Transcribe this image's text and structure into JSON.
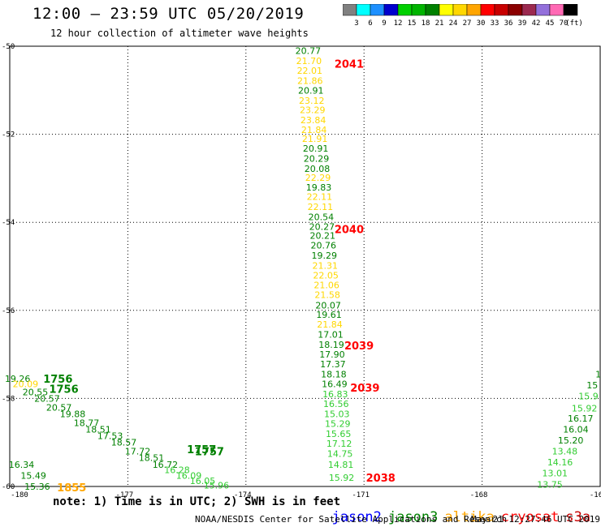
{
  "header": {
    "title": "12:00 – 23:59 UTC 05/20/2019",
    "subtitle": "12 hour collection of altimeter wave heights"
  },
  "colorbar": {
    "colors": [
      "#808080",
      "#00ffff",
      "#1e90ff",
      "#0000cd",
      "#00d000",
      "#00b400",
      "#008000",
      "#ffff00",
      "#ffd700",
      "#ffa500",
      "#ff0000",
      "#c80000",
      "#8b0000",
      "#9c2a50",
      "#9370db",
      "#ff69b4",
      "#000000"
    ],
    "labels": [
      "3",
      "6",
      "9",
      "12",
      "15",
      "18",
      "21",
      "24",
      "27",
      "30",
      "33",
      "36",
      "39",
      "42",
      "45",
      "70"
    ],
    "unit": "(ft)"
  },
  "note": "note: 1) Time is in UTC; 2) SWH is in feet",
  "satellites": [
    {
      "name": "jason2",
      "color": "#0000ff"
    },
    {
      "name": "jason3",
      "color": "#008000"
    },
    {
      "name": "altika",
      "color": "#ffa500"
    },
    {
      "name": "cryosat",
      "color": "#ff0000"
    },
    {
      "name": "s3a",
      "color": "#c80000"
    }
  ],
  "footer": {
    "center": "NOAA/NESDIS Center for Satellite Applications and Research",
    "right": "May 21 12:27:46 UTC 2019"
  },
  "chart_data": {
    "type": "scatter",
    "x_ticks": [
      "-180",
      "-177",
      "-174",
      "-171",
      "-168",
      "-16"
    ],
    "y_ticks": [
      "-50",
      "-52",
      "-54",
      "-56",
      "-58",
      "-60"
    ],
    "xlim": [
      -180,
      -165
    ],
    "ylim": [
      -60,
      -50
    ],
    "grid": true,
    "color_key": {
      "y": "#ffd700",
      "g": "#008000",
      "lg": "#32cd32",
      "o": "#ffa500",
      "r": "#ff0000"
    },
    "point_labels": [
      {
        "x": -172.42,
        "y": -50.1,
        "t": "20.77",
        "c": "g"
      },
      {
        "x": -172.4,
        "y": -50.33,
        "t": "21.70",
        "c": "y"
      },
      {
        "x": -172.38,
        "y": -50.55,
        "t": "22.01",
        "c": "y"
      },
      {
        "x": -172.37,
        "y": -50.78,
        "t": "21.86",
        "c": "y"
      },
      {
        "x": -172.35,
        "y": -51.0,
        "t": "20.91",
        "c": "g"
      },
      {
        "x": -172.33,
        "y": -51.23,
        "t": "23.12",
        "c": "y"
      },
      {
        "x": -172.31,
        "y": -51.45,
        "t": "23.29",
        "c": "y"
      },
      {
        "x": -172.29,
        "y": -51.68,
        "t": "23.84",
        "c": "y"
      },
      {
        "x": -172.27,
        "y": -51.9,
        "t": "21.84",
        "c": "y"
      },
      {
        "x": -172.25,
        "y": -52.1,
        "t": "21.91",
        "c": "y"
      },
      {
        "x": -172.23,
        "y": -52.32,
        "t": "20.91",
        "c": "g"
      },
      {
        "x": -172.21,
        "y": -52.55,
        "t": "20.29",
        "c": "g"
      },
      {
        "x": -172.19,
        "y": -52.78,
        "t": "20.08",
        "c": "g"
      },
      {
        "x": -172.17,
        "y": -52.98,
        "t": "22.29",
        "c": "y"
      },
      {
        "x": -172.15,
        "y": -53.2,
        "t": "19.83",
        "c": "g"
      },
      {
        "x": -172.13,
        "y": -53.42,
        "t": "22.11",
        "c": "y"
      },
      {
        "x": -172.11,
        "y": -53.65,
        "t": "22.11",
        "c": "y"
      },
      {
        "x": -172.09,
        "y": -53.88,
        "t": "20.54",
        "c": "g"
      },
      {
        "x": -172.07,
        "y": -54.1,
        "t": "20.27",
        "c": "g"
      },
      {
        "x": -172.05,
        "y": -54.3,
        "t": "20.21",
        "c": "g"
      },
      {
        "x": -172.03,
        "y": -54.52,
        "t": "20.76",
        "c": "g"
      },
      {
        "x": -172.01,
        "y": -54.75,
        "t": "19.29",
        "c": "g"
      },
      {
        "x": -171.99,
        "y": -54.98,
        "t": "21.31",
        "c": "y"
      },
      {
        "x": -171.97,
        "y": -55.2,
        "t": "22.05",
        "c": "y"
      },
      {
        "x": -171.95,
        "y": -55.42,
        "t": "21.06",
        "c": "y"
      },
      {
        "x": -171.93,
        "y": -55.64,
        "t": "21.58",
        "c": "y"
      },
      {
        "x": -171.91,
        "y": -55.88,
        "t": "20.07",
        "c": "g"
      },
      {
        "x": -171.89,
        "y": -56.1,
        "t": "19.61",
        "c": "g"
      },
      {
        "x": -171.87,
        "y": -56.32,
        "t": "21.84",
        "c": "y"
      },
      {
        "x": -171.85,
        "y": -56.55,
        "t": "17.01",
        "c": "g"
      },
      {
        "x": -171.83,
        "y": -56.78,
        "t": "18.19",
        "c": "g"
      },
      {
        "x": -171.81,
        "y": -57.0,
        "t": "17.90",
        "c": "g"
      },
      {
        "x": -171.79,
        "y": -57.22,
        "t": "17.37",
        "c": "g"
      },
      {
        "x": -171.77,
        "y": -57.45,
        "t": "18.18",
        "c": "g"
      },
      {
        "x": -171.75,
        "y": -57.67,
        "t": "16.49",
        "c": "g"
      },
      {
        "x": -171.73,
        "y": -57.9,
        "t": "16.83",
        "c": "lg"
      },
      {
        "x": -171.71,
        "y": -58.12,
        "t": "16.56",
        "c": "lg"
      },
      {
        "x": -171.69,
        "y": -58.35,
        "t": "15.03",
        "c": "lg"
      },
      {
        "x": -171.67,
        "y": -58.57,
        "t": "15.29",
        "c": "lg"
      },
      {
        "x": -171.65,
        "y": -58.8,
        "t": "15.65",
        "c": "lg"
      },
      {
        "x": -171.63,
        "y": -59.02,
        "t": "17.12",
        "c": "lg"
      },
      {
        "x": -171.61,
        "y": -59.25,
        "t": "14.75",
        "c": "lg"
      },
      {
        "x": -171.59,
        "y": -59.5,
        "t": "14.81",
        "c": "lg"
      },
      {
        "x": -171.57,
        "y": -59.8,
        "t": "15.92",
        "c": "lg"
      },
      {
        "x": -179.8,
        "y": -57.55,
        "t": "19.26",
        "c": "g"
      },
      {
        "x": -179.6,
        "y": -57.67,
        "t": "20.09",
        "c": "y"
      },
      {
        "x": -179.35,
        "y": -57.85,
        "t": "20.55",
        "c": "g"
      },
      {
        "x": -179.05,
        "y": -58.0,
        "t": "20.57",
        "c": "g"
      },
      {
        "x": -178.75,
        "y": -58.2,
        "t": "20.57",
        "c": "g"
      },
      {
        "x": -178.4,
        "y": -58.35,
        "t": "19.88",
        "c": "g"
      },
      {
        "x": -178.05,
        "y": -58.55,
        "t": "18.77",
        "c": "g"
      },
      {
        "x": -177.75,
        "y": -58.7,
        "t": "18.51",
        "c": "g"
      },
      {
        "x": -177.45,
        "y": -58.85,
        "t": "17.53",
        "c": "g"
      },
      {
        "x": -177.1,
        "y": -59.0,
        "t": "18.57",
        "c": "g"
      },
      {
        "x": -176.75,
        "y": -59.2,
        "t": "17.72",
        "c": "g"
      },
      {
        "x": -176.4,
        "y": -59.35,
        "t": "18.51",
        "c": "g"
      },
      {
        "x": -176.05,
        "y": -59.5,
        "t": "16.72",
        "c": "g"
      },
      {
        "x": -175.75,
        "y": -59.62,
        "t": "16.28",
        "c": "lg"
      },
      {
        "x": -175.45,
        "y": -59.75,
        "t": "16.09",
        "c": "lg"
      },
      {
        "x": -175.1,
        "y": -59.87,
        "t": "16.05",
        "c": "lg"
      },
      {
        "x": -174.75,
        "y": -59.97,
        "t": "15.96",
        "c": "lg"
      },
      {
        "x": -179.7,
        "y": -59.5,
        "t": "16.34",
        "c": "g"
      },
      {
        "x": -179.4,
        "y": -59.75,
        "t": "15.49",
        "c": "g"
      },
      {
        "x": -179.3,
        "y": -60.0,
        "t": "15.36",
        "c": "g"
      },
      {
        "x": -165.05,
        "y": -57.45,
        "t": "1",
        "c": "g"
      },
      {
        "x": -165.2,
        "y": -57.7,
        "t": "15",
        "c": "g"
      },
      {
        "x": -165.3,
        "y": -57.95,
        "t": "15.9",
        "c": "lg"
      },
      {
        "x": -165.4,
        "y": -58.22,
        "t": "15.92",
        "c": "lg"
      },
      {
        "x": -165.5,
        "y": -58.45,
        "t": "16.17",
        "c": "g"
      },
      {
        "x": -165.62,
        "y": -58.7,
        "t": "16.04",
        "c": "g"
      },
      {
        "x": -165.75,
        "y": -58.95,
        "t": "15.20",
        "c": "g"
      },
      {
        "x": -165.9,
        "y": -59.2,
        "t": "13.48",
        "c": "lg"
      },
      {
        "x": -166.02,
        "y": -59.45,
        "t": "14.16",
        "c": "lg"
      },
      {
        "x": -166.15,
        "y": -59.7,
        "t": "13.01",
        "c": "lg"
      },
      {
        "x": -166.28,
        "y": -59.95,
        "t": "13.75",
        "c": "lg"
      }
    ],
    "time_labels": [
      {
        "x": -171.75,
        "y": -50.4,
        "t": "2041",
        "c": "r"
      },
      {
        "x": -171.75,
        "y": -54.15,
        "t": "2040",
        "c": "r"
      },
      {
        "x": -171.5,
        "y": -56.8,
        "t": "2039",
        "c": "r"
      },
      {
        "x": -171.35,
        "y": -57.75,
        "t": "2039",
        "c": "r"
      },
      {
        "x": -170.95,
        "y": -59.8,
        "t": "2038",
        "c": "r"
      },
      {
        "x": -179.15,
        "y": -57.55,
        "t": "1756",
        "c": "g"
      },
      {
        "x": -179.0,
        "y": -57.78,
        "t": "1756",
        "c": "g"
      },
      {
        "x": -175.5,
        "y": -59.15,
        "t": "1757",
        "c": "g"
      },
      {
        "x": -175.3,
        "y": -59.2,
        "t": "1757",
        "c": "g"
      },
      {
        "x": -178.8,
        "y": -60.02,
        "t": "1855",
        "c": "o"
      }
    ]
  }
}
